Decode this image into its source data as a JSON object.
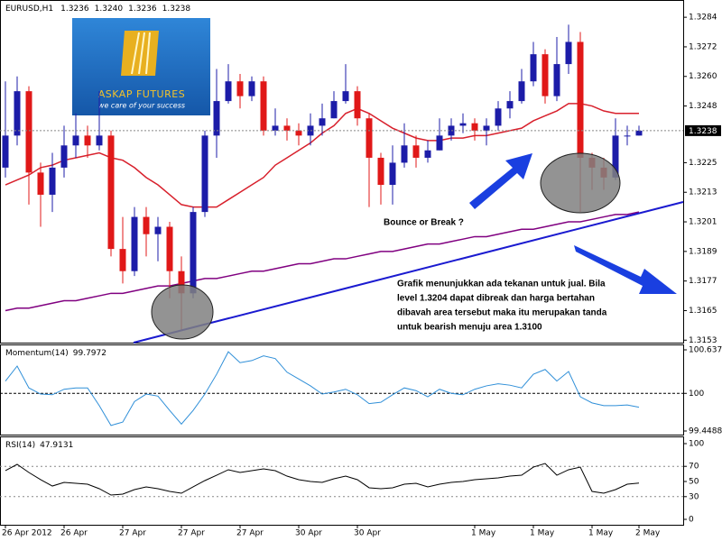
{
  "logo": {
    "name": "ASKAP FUTURES",
    "tagline": "we care of your success"
  },
  "chart_data": [
    {
      "type": "candlestick",
      "symbol": "EURUSD,H1",
      "last_bar_labels": [
        "1.3236",
        "1.3240",
        "1.3236",
        "1.3238"
      ],
      "categories": [
        "26 Apr 2012",
        null,
        null,
        null,
        null,
        "26 Apr",
        null,
        null,
        null,
        null,
        "27 Apr",
        null,
        null,
        null,
        null,
        "27 Apr",
        null,
        null,
        null,
        null,
        "27 Apr",
        null,
        null,
        null,
        null,
        "30 Apr",
        null,
        null,
        null,
        null,
        "30 Apr",
        null,
        null,
        null,
        null,
        null,
        null,
        null,
        null,
        null,
        "1 May",
        null,
        null,
        null,
        null,
        "1 May",
        null,
        null,
        null,
        null,
        "1 May",
        null,
        null,
        null,
        "2 May"
      ],
      "open": [
        1.3223,
        1.3236,
        1.3254,
        1.3221,
        1.3212,
        1.3223,
        1.3232,
        1.3236,
        1.3232,
        1.3236,
        1.319,
        1.3181,
        1.3203,
        1.3196,
        1.3199,
        1.3181,
        1.3172,
        1.3205,
        1.3236,
        1.325,
        1.3258,
        1.3252,
        1.3258,
        1.3238,
        1.324,
        1.3238,
        1.3236,
        1.324,
        1.3243,
        1.325,
        1.3254,
        1.3243,
        1.3227,
        1.3216,
        1.3225,
        1.3232,
        1.3227,
        1.323,
        1.3236,
        1.324,
        1.3241,
        1.3238,
        1.324,
        1.3247,
        1.325,
        1.3258,
        1.3269,
        1.3252,
        1.3265,
        1.3274,
        1.3227,
        1.3223,
        1.3219,
        1.3236,
        1.3236
      ],
      "high": [
        1.3258,
        1.326,
        1.3256,
        1.3225,
        1.3229,
        1.324,
        1.3245,
        1.324,
        1.3254,
        1.3238,
        1.3203,
        1.3207,
        1.3207,
        1.3203,
        1.3201,
        1.3187,
        1.3207,
        1.3238,
        1.3263,
        1.3265,
        1.3261,
        1.326,
        1.326,
        1.3247,
        1.3243,
        1.3241,
        1.3245,
        1.3249,
        1.3254,
        1.3265,
        1.3256,
        1.3245,
        1.3229,
        1.3232,
        1.3241,
        1.3236,
        1.3234,
        1.3243,
        1.3243,
        1.3245,
        1.3243,
        1.3243,
        1.325,
        1.3254,
        1.3263,
        1.3274,
        1.3271,
        1.3276,
        1.3281,
        1.3278,
        1.3229,
        1.3227,
        1.3243,
        1.324,
        1.324
      ],
      "low": [
        1.3219,
        1.3232,
        1.3208,
        1.3199,
        1.3205,
        1.3219,
        1.3227,
        1.3227,
        1.323,
        1.3187,
        1.3176,
        1.3179,
        1.3187,
        1.3185,
        1.317,
        1.3157,
        1.317,
        1.3203,
        1.3227,
        1.3249,
        1.3247,
        1.325,
        1.3236,
        1.3236,
        1.3234,
        1.3232,
        1.3232,
        1.3236,
        1.3243,
        1.3249,
        1.324,
        1.3207,
        1.3208,
        1.3208,
        1.3223,
        1.3223,
        1.3225,
        1.323,
        1.3234,
        1.3237,
        1.3234,
        1.3232,
        1.3238,
        1.3243,
        1.3249,
        1.3256,
        1.3249,
        1.325,
        1.3261,
        1.3205,
        1.3214,
        1.3214,
        1.3218,
        1.3232,
        1.3236
      ],
      "close": [
        1.3236,
        1.3254,
        1.3221,
        1.3212,
        1.3223,
        1.3232,
        1.3236,
        1.3232,
        1.3236,
        1.319,
        1.3181,
        1.3203,
        1.3196,
        1.3199,
        1.3181,
        1.3172,
        1.3205,
        1.3236,
        1.325,
        1.3258,
        1.3252,
        1.3258,
        1.3238,
        1.324,
        1.3238,
        1.3236,
        1.324,
        1.3243,
        1.325,
        1.3254,
        1.3243,
        1.3227,
        1.3216,
        1.3225,
        1.3232,
        1.3227,
        1.323,
        1.3236,
        1.324,
        1.3241,
        1.3238,
        1.324,
        1.3247,
        1.325,
        1.3258,
        1.3269,
        1.3252,
        1.3265,
        1.3274,
        1.3227,
        1.3223,
        1.3219,
        1.3236,
        1.3236,
        1.3238
      ],
      "up_color": "#1c1ca8",
      "down_color": "#e01818",
      "series": [
        {
          "color": "#d8202c",
          "values": [
            1.3216,
            1.3218,
            1.322,
            1.3223,
            1.3224,
            1.3226,
            1.3227,
            1.3228,
            1.3229,
            1.3227,
            1.3226,
            1.3223,
            1.3219,
            1.3216,
            1.3212,
            1.3208,
            1.3207,
            1.3207,
            1.3207,
            1.321,
            1.3213,
            1.3216,
            1.3219,
            1.3224,
            1.3227,
            1.323,
            1.3233,
            1.3237,
            1.324,
            1.3245,
            1.3247,
            1.3245,
            1.3242,
            1.3239,
            1.3237,
            1.3235,
            1.3234,
            1.3234,
            1.3235,
            1.3235,
            1.3236,
            1.3236,
            1.3237,
            1.3238,
            1.3239,
            1.3242,
            1.3244,
            1.3246,
            1.3249,
            1.3249,
            1.3248,
            1.3246,
            1.3245,
            1.3245,
            1.3245
          ]
        },
        {
          "color": "#800080",
          "values": [
            1.3165,
            1.3166,
            1.3166,
            1.3167,
            1.3168,
            1.3169,
            1.3169,
            1.317,
            1.3171,
            1.3172,
            1.3172,
            1.3173,
            1.3174,
            1.3175,
            1.3175,
            1.3176,
            1.3177,
            1.3178,
            1.3178,
            1.3179,
            1.318,
            1.3181,
            1.3181,
            1.3182,
            1.3183,
            1.3184,
            1.3184,
            1.3185,
            1.3186,
            1.3186,
            1.3187,
            1.3188,
            1.3189,
            1.3189,
            1.319,
            1.3191,
            1.3192,
            1.3192,
            1.3193,
            1.3194,
            1.3195,
            1.3195,
            1.3196,
            1.3197,
            1.3198,
            1.3198,
            1.3199,
            1.32,
            1.3201,
            1.3201,
            1.3202,
            1.3203,
            1.3204,
            1.3204,
            1.3205
          ]
        }
      ],
      "ylim": [
        1.3152,
        1.3291
      ],
      "yticks": [
        1.3284,
        1.3272,
        {
          "value": 1.326,
          "label": "1.3260"
        },
        1.3248,
        1.3225,
        1.3213,
        1.3201,
        1.3189,
        1.3177,
        1.3165,
        1.3153
      ],
      "grid": false,
      "annotations": [
        "Bounce or Break ?",
        "Grafik menunjukkan ada tekanan untuk jual.  Bila",
        "level 1.3204 dapat dibreak dan harga bertahan",
        "dibavah area tersebut maka itu merupakan tanda",
        "untuk bearish menuju area 1.3100"
      ]
    },
    {
      "type": "line",
      "name": "Momentum(14)",
      "color": "#2f8fd8",
      "values": [
        100.18,
        100.4,
        100.08,
        99.99,
        99.98,
        100.06,
        100.08,
        100.08,
        99.82,
        99.53,
        99.58,
        99.88,
        99.99,
        99.96,
        99.75,
        99.55,
        99.75,
        99.99,
        100.28,
        100.61,
        100.45,
        100.48,
        100.55,
        100.51,
        100.31,
        100.21,
        100.11,
        99.99,
        100.02,
        100.06,
        99.98,
        99.85,
        99.87,
        99.98,
        100.08,
        100.04,
        99.95,
        100.06,
        100.0,
        99.98,
        100.06,
        100.11,
        100.14,
        100.12,
        100.08,
        100.28,
        100.35,
        100.18,
        100.32,
        99.95,
        99.86,
        99.82,
        99.82,
        99.83,
        99.7972
      ],
      "ylim": [
        99.4488,
        100.6375
      ],
      "yticks": [
        100.6375,
        100,
        99.4488
      ],
      "levels": [
        100
      ]
    },
    {
      "type": "line",
      "name": "RSI(14)",
      "color": "#000000",
      "values": [
        64.3,
        72.6,
        61.9,
        52.4,
        44.0,
        48.8,
        47.6,
        46.4,
        40.5,
        32.1,
        33.3,
        39.3,
        42.9,
        40.5,
        36.9,
        34.5,
        42.9,
        51.2,
        58.3,
        65.5,
        61.9,
        64.3,
        66.7,
        64.3,
        57.1,
        52.4,
        50.0,
        48.8,
        53.6,
        57.1,
        52.4,
        41.7,
        40.5,
        41.7,
        46.4,
        47.6,
        42.9,
        46.4,
        48.8,
        50.0,
        52.4,
        53.6,
        54.8,
        57.1,
        58.3,
        69.0,
        73.8,
        58.3,
        65.5,
        69.0,
        36.9,
        34.5,
        39.3,
        46.4,
        47.9131
      ],
      "ylim": [
        0,
        100
      ],
      "yticks": [
        100,
        70,
        50,
        30,
        0
      ],
      "levels": [
        70,
        30
      ]
    }
  ]
}
